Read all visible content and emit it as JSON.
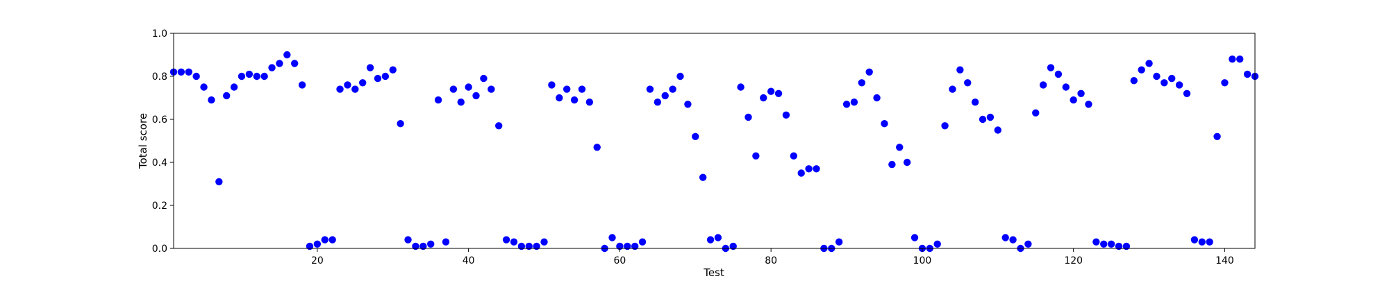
{
  "chart_data": {
    "type": "scatter",
    "title": "",
    "xlabel": "Test",
    "ylabel": "Total score",
    "xlim": [
      1,
      144
    ],
    "ylim": [
      0.0,
      1.0
    ],
    "xticks": [
      20,
      40,
      60,
      80,
      100,
      120,
      140
    ],
    "yticks": [
      0.0,
      0.2,
      0.4,
      0.6,
      0.8,
      1.0
    ],
    "ytick_labels": [
      "0.0",
      "0.2",
      "0.4",
      "0.6",
      "0.8",
      "1.0"
    ],
    "grid": false,
    "legend": "none",
    "marker_color": "#0000ff",
    "series": [
      {
        "points": [
          [
            1,
            0.82
          ],
          [
            2,
            0.82
          ],
          [
            3,
            0.82
          ],
          [
            4,
            0.8
          ],
          [
            5,
            0.75
          ],
          [
            6,
            0.69
          ],
          [
            7,
            0.31
          ],
          [
            8,
            0.71
          ],
          [
            9,
            0.75
          ],
          [
            10,
            0.8
          ],
          [
            11,
            0.81
          ],
          [
            12,
            0.8
          ],
          [
            13,
            0.8
          ],
          [
            14,
            0.84
          ],
          [
            15,
            0.86
          ],
          [
            16,
            0.9
          ],
          [
            17,
            0.86
          ],
          [
            18,
            0.76
          ],
          [
            19,
            0.01
          ],
          [
            20,
            0.02
          ],
          [
            21,
            0.04
          ],
          [
            22,
            0.04
          ],
          [
            23,
            0.74
          ],
          [
            24,
            0.76
          ],
          [
            25,
            0.74
          ],
          [
            26,
            0.77
          ],
          [
            27,
            0.84
          ],
          [
            28,
            0.79
          ],
          [
            29,
            0.8
          ],
          [
            30,
            0.83
          ],
          [
            31,
            0.58
          ],
          [
            32,
            0.04
          ],
          [
            33,
            0.01
          ],
          [
            34,
            0.01
          ],
          [
            35,
            0.02
          ],
          [
            36,
            0.69
          ],
          [
            37,
            0.03
          ],
          [
            38,
            0.74
          ],
          [
            39,
            0.68
          ],
          [
            40,
            0.75
          ],
          [
            41,
            0.71
          ],
          [
            42,
            0.79
          ],
          [
            43,
            0.74
          ],
          [
            44,
            0.57
          ],
          [
            45,
            0.04
          ],
          [
            46,
            0.03
          ],
          [
            47,
            0.01
          ],
          [
            48,
            0.01
          ],
          [
            49,
            0.01
          ],
          [
            50,
            0.03
          ],
          [
            51,
            0.76
          ],
          [
            52,
            0.7
          ],
          [
            53,
            0.74
          ],
          [
            54,
            0.69
          ],
          [
            55,
            0.74
          ],
          [
            56,
            0.68
          ],
          [
            57,
            0.47
          ],
          [
            58,
            0.0
          ],
          [
            59,
            0.05
          ],
          [
            60,
            0.01
          ],
          [
            61,
            0.01
          ],
          [
            62,
            0.01
          ],
          [
            63,
            0.03
          ],
          [
            64,
            0.74
          ],
          [
            65,
            0.68
          ],
          [
            66,
            0.71
          ],
          [
            67,
            0.74
          ],
          [
            68,
            0.8
          ],
          [
            69,
            0.67
          ],
          [
            70,
            0.52
          ],
          [
            71,
            0.33
          ],
          [
            72,
            0.04
          ],
          [
            73,
            0.05
          ],
          [
            74,
            0.0
          ],
          [
            75,
            0.01
          ],
          [
            76,
            0.75
          ],
          [
            77,
            0.61
          ],
          [
            78,
            0.43
          ],
          [
            79,
            0.7
          ],
          [
            80,
            0.73
          ],
          [
            81,
            0.72
          ],
          [
            82,
            0.62
          ],
          [
            83,
            0.43
          ],
          [
            84,
            0.35
          ],
          [
            85,
            0.37
          ],
          [
            86,
            0.37
          ],
          [
            87,
            0.0
          ],
          [
            88,
            0.0
          ],
          [
            89,
            0.03
          ],
          [
            90,
            0.67
          ],
          [
            91,
            0.68
          ],
          [
            92,
            0.77
          ],
          [
            93,
            0.82
          ],
          [
            94,
            0.7
          ],
          [
            95,
            0.58
          ],
          [
            96,
            0.39
          ],
          [
            97,
            0.47
          ],
          [
            98,
            0.4
          ],
          [
            99,
            0.05
          ],
          [
            100,
            0.0
          ],
          [
            101,
            0.0
          ],
          [
            102,
            0.02
          ],
          [
            103,
            0.57
          ],
          [
            104,
            0.74
          ],
          [
            105,
            0.83
          ],
          [
            106,
            0.77
          ],
          [
            107,
            0.68
          ],
          [
            108,
            0.6
          ],
          [
            109,
            0.61
          ],
          [
            110,
            0.55
          ],
          [
            111,
            0.05
          ],
          [
            112,
            0.04
          ],
          [
            113,
            0.0
          ],
          [
            114,
            0.02
          ],
          [
            115,
            0.63
          ],
          [
            116,
            0.76
          ],
          [
            117,
            0.84
          ],
          [
            118,
            0.81
          ],
          [
            119,
            0.75
          ],
          [
            120,
            0.69
          ],
          [
            121,
            0.72
          ],
          [
            122,
            0.67
          ],
          [
            123,
            0.03
          ],
          [
            124,
            0.02
          ],
          [
            125,
            0.02
          ],
          [
            126,
            0.01
          ],
          [
            127,
            0.01
          ],
          [
            128,
            0.78
          ],
          [
            129,
            0.83
          ],
          [
            130,
            0.86
          ],
          [
            131,
            0.8
          ],
          [
            132,
            0.77
          ],
          [
            133,
            0.79
          ],
          [
            134,
            0.76
          ],
          [
            135,
            0.72
          ],
          [
            136,
            0.04
          ],
          [
            137,
            0.03
          ],
          [
            138,
            0.03
          ],
          [
            139,
            0.52
          ],
          [
            140,
            0.77
          ],
          [
            141,
            0.88
          ],
          [
            142,
            0.88
          ],
          [
            143,
            0.81
          ],
          [
            144,
            0.8
          ]
        ]
      }
    ]
  }
}
